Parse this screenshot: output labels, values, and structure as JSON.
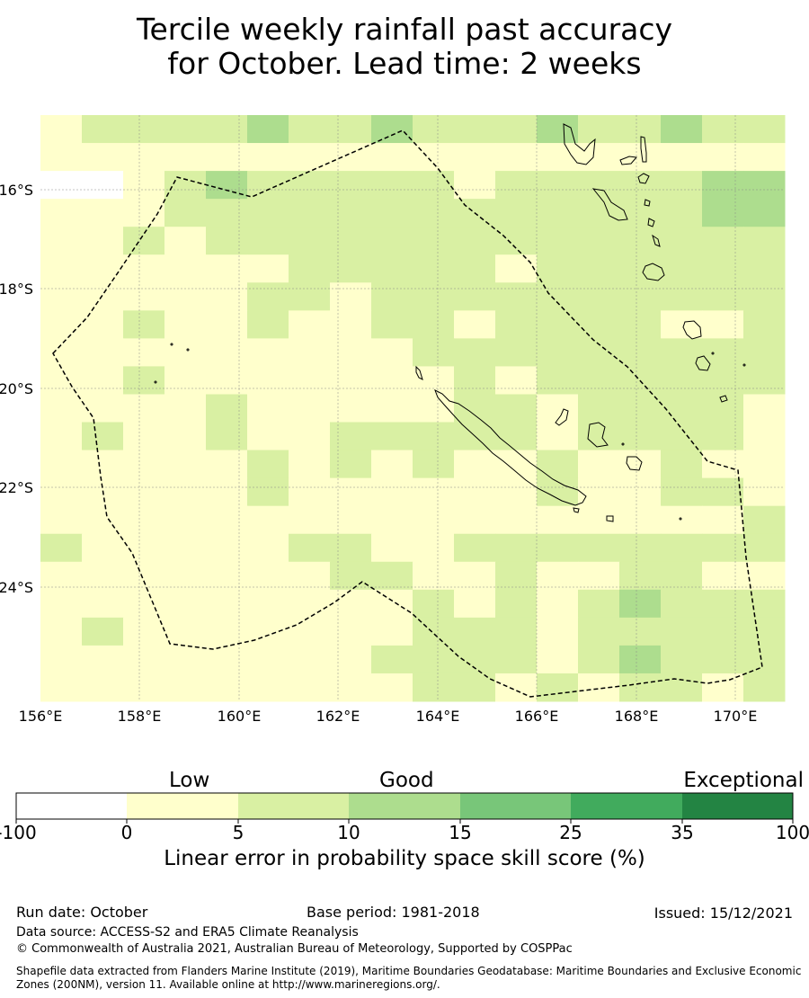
{
  "title": {
    "line1": "Tercile weekly rainfall past accuracy",
    "line2": "for October. Lead time: 2 weeks"
  },
  "map": {
    "lon_labels": [
      "156°E",
      "158°E",
      "160°E",
      "162°E",
      "164°E",
      "166°E",
      "168°E",
      "170°E"
    ],
    "lat_labels": [
      "16°S",
      "18°S",
      "20°S",
      "22°S",
      "24°S"
    ],
    "lon_range": [
      156,
      171
    ],
    "lat_range": [
      -26.3,
      -14.5
    ],
    "colors": [
      "#ffffff",
      "#ffffcc",
      "#d9f0a3",
      "#addd8e",
      "#78c679",
      "#41ab5d",
      "#238443"
    ],
    "grid_color": "#888888",
    "eez_style": "dashed"
  },
  "colorbar": {
    "categories": {
      "low": "Low",
      "good": "Good",
      "exceptional": "Exceptional"
    },
    "ticks": [
      "-100",
      "0",
      "5",
      "10",
      "15",
      "25",
      "35",
      "100"
    ],
    "label": "Linear error in probability space skill score (%)"
  },
  "footer": {
    "run_date": "Run date: October",
    "base_period": "Base period: 1981-2018",
    "issued": "Issued: 15/12/2021",
    "data_source": "Data source: ACCESS-S2 and ERA5 Climate Reanalysis",
    "copyright": "© Commonwealth of Australia 2021, Australian Bureau of Meteorology, Supported by COSPPac",
    "shapefile_line1": "Shapefile data extracted from Flanders Marine Institute (2019), Maritime Boundaries Geodatabase: Maritime Boundaries and Exclusive Economic",
    "shapefile_line2": "Zones (200NM), version 11. Available online at http://www.marineregions.org/."
  }
}
